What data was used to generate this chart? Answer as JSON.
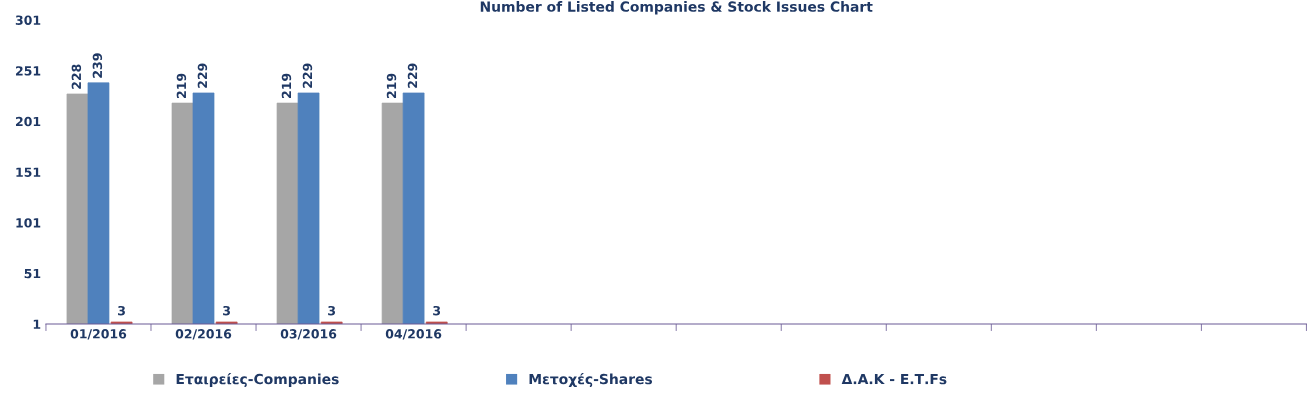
{
  "chart_data": {
    "type": "bar",
    "title": "Number of Listed Companies & Stock Issues Chart",
    "categories": [
      "01/2016",
      "02/2016",
      "03/2016",
      "04/2016",
      null,
      null,
      null,
      null,
      null,
      null,
      null,
      null
    ],
    "series": [
      {
        "name": "Εταιρείες-Companies",
        "color": "#a6a6a6",
        "values": [
          228,
          219,
          219,
          219,
          null,
          null,
          null,
          null,
          null,
          null,
          null,
          null
        ]
      },
      {
        "name": "Μετοχές-Shares",
        "color": "#4f81bd",
        "values": [
          239,
          229,
          229,
          229,
          null,
          null,
          null,
          null,
          null,
          null,
          null,
          null
        ]
      },
      {
        "name": "Δ.Α.Κ - Ε.Τ.Fs",
        "color": "#c0504d",
        "values": [
          3,
          3,
          3,
          3,
          null,
          null,
          null,
          null,
          null,
          null,
          null,
          null
        ]
      }
    ],
    "ylim": [
      1,
      301
    ],
    "yticks": [
      1,
      51,
      101,
      151,
      201,
      251,
      301
    ],
    "data_labels": true,
    "grid": false,
    "legend": "bottom"
  }
}
